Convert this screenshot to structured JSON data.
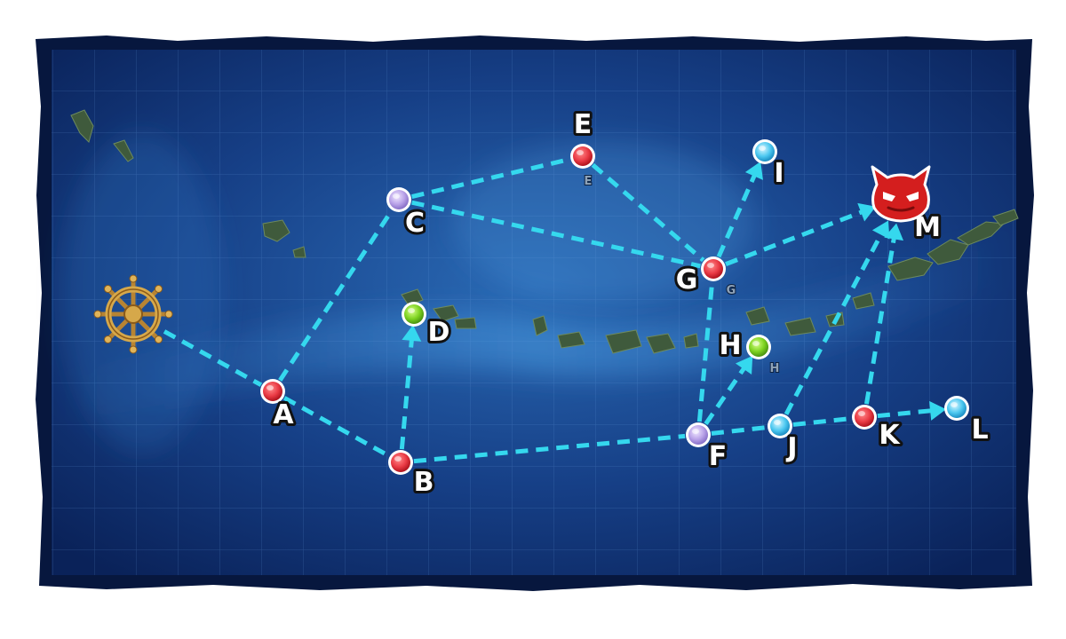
{
  "map": {
    "colors": {
      "ocean_deep": "#0b2a63",
      "ocean_light": "#2f6fb8",
      "route": "#35d8ee",
      "node_battle": "#ea3b45",
      "node_resource": "#7ed321",
      "node_empty": "#b9a2e8",
      "node_end": "#4cc8f0",
      "boss": "#d41e1e",
      "start": "#d6a84a"
    },
    "start_icon": "ship-wheel-icon",
    "boss_icon": "demon-face-icon",
    "nodes": [
      {
        "id": "A",
        "label": "A",
        "type": "battle"
      },
      {
        "id": "B",
        "label": "B",
        "type": "battle"
      },
      {
        "id": "C",
        "label": "C",
        "type": "empty"
      },
      {
        "id": "D",
        "label": "D",
        "type": "resource"
      },
      {
        "id": "E",
        "label": "E",
        "type": "battle",
        "sub": "E"
      },
      {
        "id": "F",
        "label": "F",
        "type": "empty"
      },
      {
        "id": "G",
        "label": "G",
        "type": "battle",
        "sub": "G"
      },
      {
        "id": "H",
        "label": "H",
        "type": "resource",
        "sub": "H"
      },
      {
        "id": "I",
        "label": "I",
        "type": "end"
      },
      {
        "id": "J",
        "label": "J",
        "type": "end"
      },
      {
        "id": "K",
        "label": "K",
        "type": "battle"
      },
      {
        "id": "L",
        "label": "L",
        "type": "end"
      },
      {
        "id": "M",
        "label": "M",
        "type": "boss"
      }
    ],
    "routes": [
      {
        "from": "start",
        "to": "A",
        "arrow": false
      },
      {
        "from": "A",
        "to": "B",
        "arrow": false
      },
      {
        "from": "A",
        "to": "C",
        "arrow": false
      },
      {
        "from": "B",
        "to": "D",
        "arrow": true
      },
      {
        "from": "B",
        "to": "F",
        "arrow": false
      },
      {
        "from": "C",
        "to": "E",
        "arrow": false
      },
      {
        "from": "C",
        "to": "G",
        "arrow": false
      },
      {
        "from": "E",
        "to": "G",
        "arrow": false
      },
      {
        "from": "G",
        "to": "I",
        "arrow": true
      },
      {
        "from": "G",
        "to": "M",
        "arrow": true
      },
      {
        "from": "F",
        "to": "G",
        "arrow": false
      },
      {
        "from": "F",
        "to": "H",
        "arrow": true
      },
      {
        "from": "F",
        "to": "J",
        "arrow": false
      },
      {
        "from": "J",
        "to": "K",
        "arrow": false
      },
      {
        "from": "J",
        "to": "M",
        "arrow": true
      },
      {
        "from": "K",
        "to": "L",
        "arrow": true
      },
      {
        "from": "K",
        "to": "M",
        "arrow": true
      }
    ]
  }
}
